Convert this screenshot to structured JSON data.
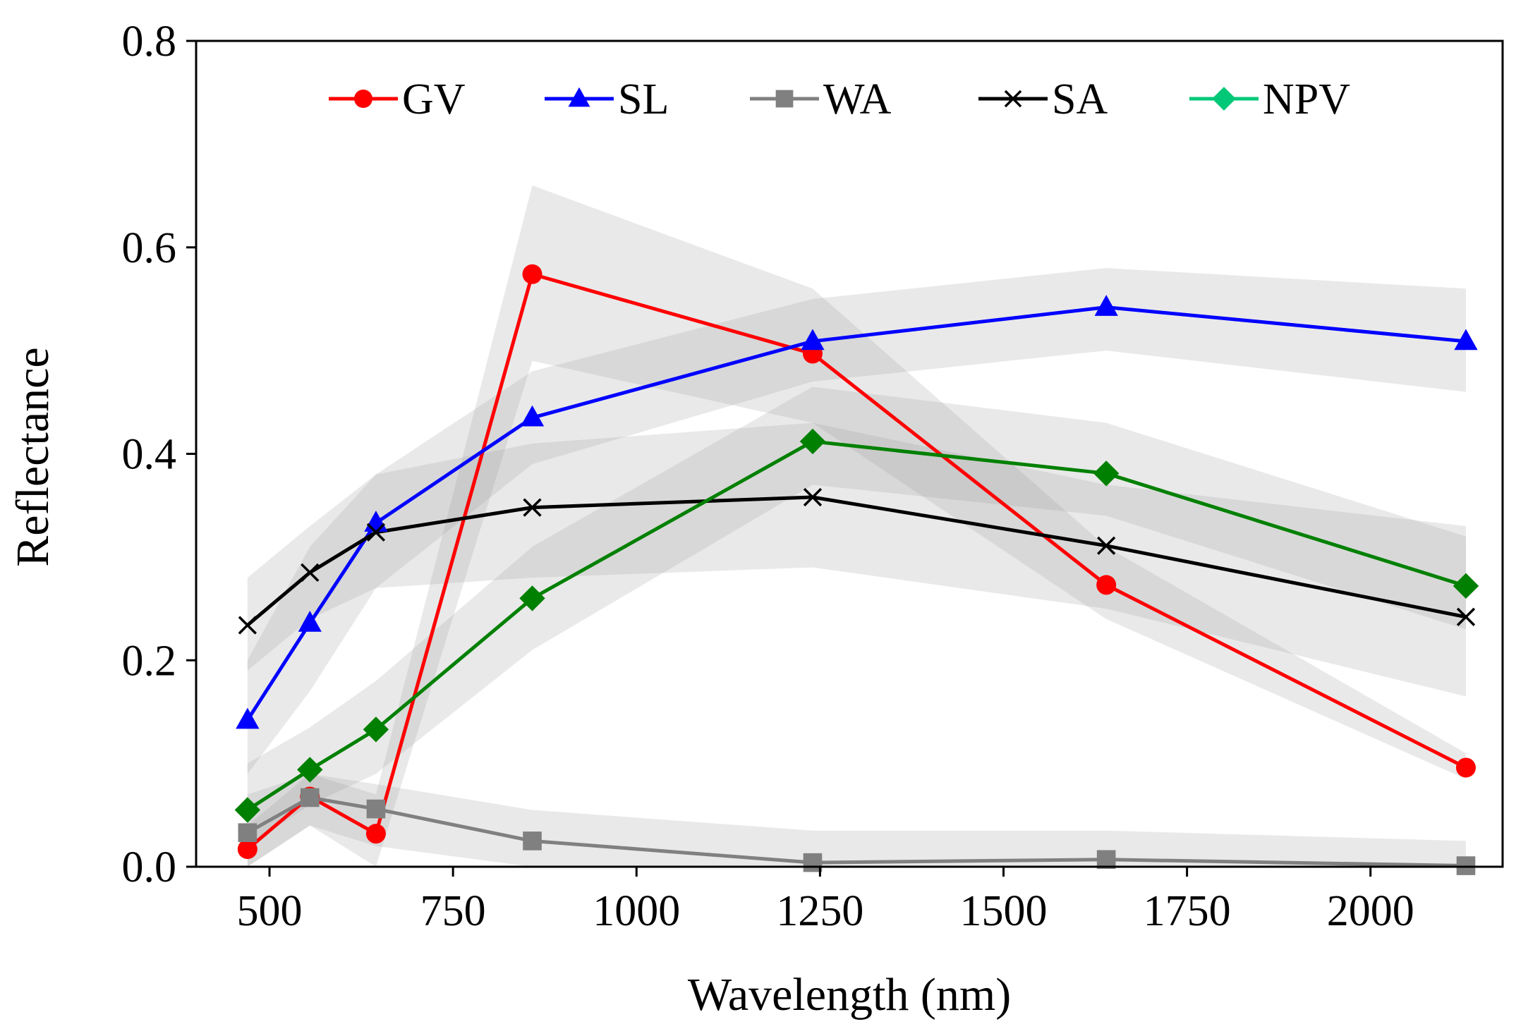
{
  "chart_data": {
    "type": "line",
    "title": "",
    "xlabel": "Wavelength (nm)",
    "ylabel": "Reflectance",
    "xlim": [
      400,
      2180
    ],
    "ylim": [
      0.0,
      0.8
    ],
    "xticks": [
      500,
      750,
      1000,
      1250,
      1500,
      1750,
      2000
    ],
    "xtick_labels": [
      "500",
      "750",
      "1000",
      "1250",
      "1500",
      "1750",
      "2000"
    ],
    "yticks": [
      0.0,
      0.2,
      0.4,
      0.6,
      0.8
    ],
    "ytick_labels": [
      "0.0",
      "0.2",
      "0.4",
      "0.6",
      "0.8"
    ],
    "x": [
      470,
      555,
      645,
      858,
      1240,
      1640,
      2130
    ],
    "legend_position": "top",
    "series": [
      {
        "name": "GV",
        "color": "#ff0000",
        "marker": "circle",
        "values": [
          0.017,
          0.068,
          0.032,
          0.574,
          0.497,
          0.273,
          0.096
        ],
        "band_lower": [
          0.0,
          0.04,
          0.0,
          0.49,
          0.43,
          0.24,
          0.085
        ],
        "band_upper": [
          0.04,
          0.09,
          0.07,
          0.66,
          0.56,
          0.31,
          0.11
        ]
      },
      {
        "name": "SL",
        "color": "#0000ff",
        "marker": "triangle",
        "values": [
          0.142,
          0.236,
          0.333,
          0.435,
          0.509,
          0.542,
          0.509
        ],
        "band_lower": [
          0.09,
          0.17,
          0.27,
          0.39,
          0.47,
          0.5,
          0.46
        ],
        "band_upper": [
          0.2,
          0.31,
          0.38,
          0.48,
          0.55,
          0.58,
          0.56
        ]
      },
      {
        "name": "WA",
        "color": "#808080",
        "marker": "square",
        "values": [
          0.033,
          0.067,
          0.056,
          0.025,
          0.004,
          0.007,
          0.001
        ],
        "band_lower": [
          0.0,
          0.04,
          0.02,
          0.0,
          0.0,
          0.0,
          0.0
        ],
        "band_upper": [
          0.07,
          0.09,
          0.08,
          0.055,
          0.035,
          0.035,
          0.025
        ]
      },
      {
        "name": "SA",
        "color": "#000000",
        "marker": "x",
        "values": [
          0.234,
          0.285,
          0.324,
          0.348,
          0.358,
          0.311,
          0.242
        ],
        "band_lower": [
          0.19,
          0.24,
          0.27,
          0.28,
          0.29,
          0.25,
          0.165
        ],
        "band_upper": [
          0.28,
          0.33,
          0.38,
          0.41,
          0.43,
          0.37,
          0.33
        ]
      },
      {
        "name": "NPV",
        "color": "#008000",
        "legend_color": "#00c878",
        "marker": "diamond",
        "values": [
          0.055,
          0.094,
          0.133,
          0.26,
          0.412,
          0.381,
          0.272
        ],
        "band_lower": [
          0.02,
          0.06,
          0.09,
          0.21,
          0.37,
          0.34,
          0.23
        ],
        "band_upper": [
          0.1,
          0.135,
          0.18,
          0.31,
          0.465,
          0.43,
          0.32
        ]
      }
    ]
  }
}
